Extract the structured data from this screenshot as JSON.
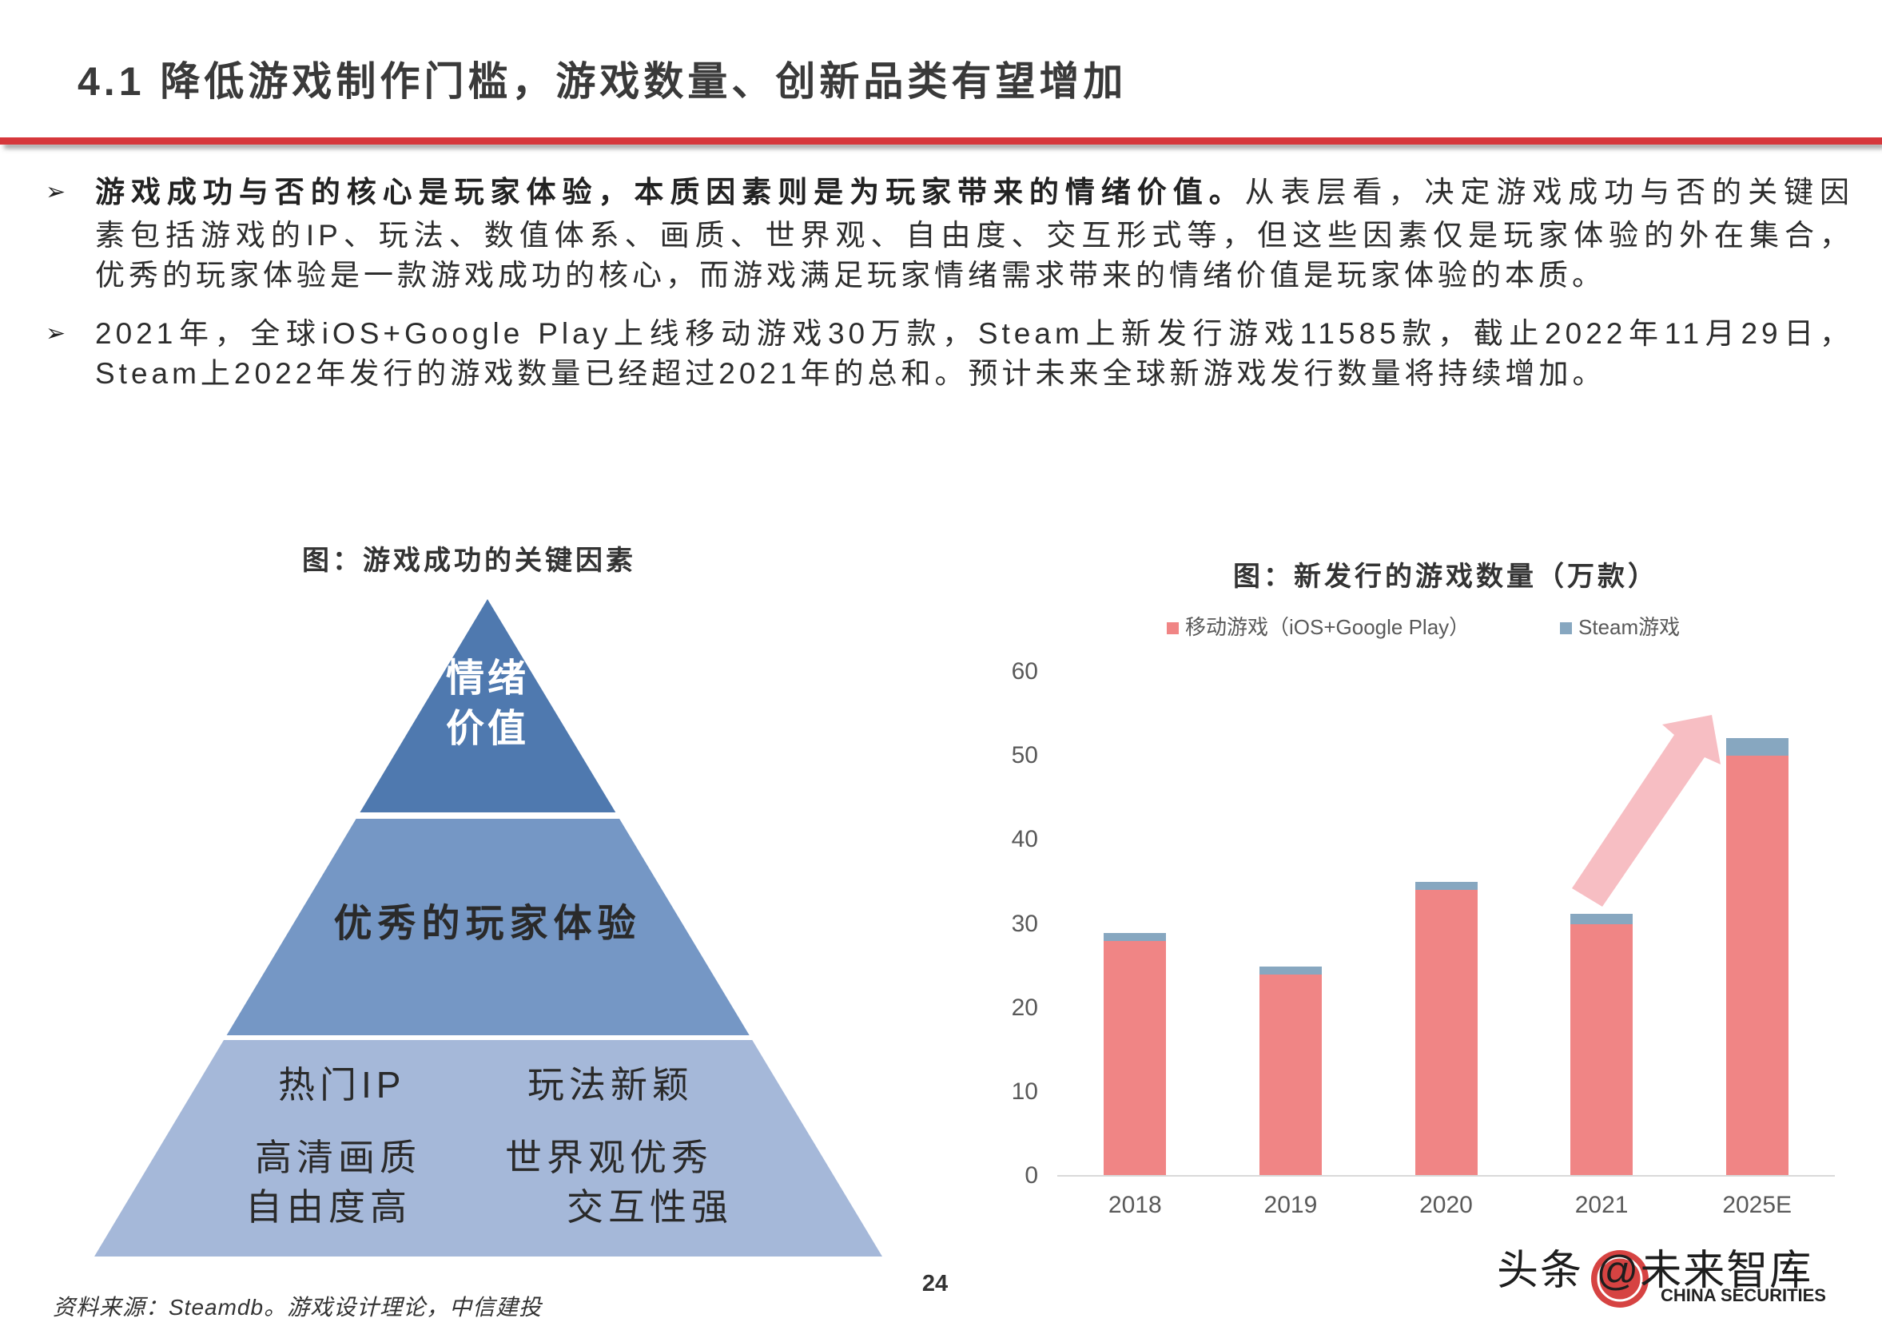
{
  "page": {
    "title": "4.1 降低游戏制作门槛，游戏数量、创新品类有望增加",
    "page_number": "24",
    "source": "资料来源：Steamdb。游戏设计理论，中信建投"
  },
  "bullet_icon": "➢",
  "bullets": [
    {
      "lines": [
        {
          "bold": "游戏成功与否的核心是玩家体验，本质因素则是为玩家带来的情绪价值。",
          "text": "从表层看，决定游戏成功与否的关键因"
        },
        {
          "text": "素包括游戏的IP、玩法、数值体系、画质、世界观、自由度、交互形式等，但这些因素仅是玩家体验的外在集合，"
        },
        {
          "text": "优秀的玩家体验是一款游戏成功的核心，而游戏满足玩家情绪需求带来的情绪价值是玩家体验的本质。"
        }
      ]
    },
    {
      "lines": [
        {
          "text": "2021年，全球iOS+Google Play上线移动游戏30万款，Steam上新发行游戏11585款，截止2022年11月29日，"
        },
        {
          "text": "Steam上2022年发行的游戏数量已经超过2021年的总和。预计未来全球新游戏发行数量将持续增加。"
        }
      ]
    }
  ],
  "pyramid": {
    "title": "图：游戏成功的关键因素",
    "tier1": {
      "lines": [
        "情绪",
        "价值"
      ]
    },
    "tier2": {
      "label": "优秀的玩家体验"
    },
    "tier3": {
      "items": [
        "热门IP",
        "玩法新颖",
        "高清画质",
        "世界观优秀",
        "自由度高",
        "交互性强"
      ]
    }
  },
  "colors": {
    "accent_red": "#D6373B",
    "tier1": "#4F79AF",
    "tier2": "#7597C5",
    "tier3": "#A5B8D9",
    "arrow": "#F7BEC3",
    "logo_red": "#D22F2E"
  },
  "chart_data": {
    "type": "bar",
    "stacked": true,
    "title": "图：新发行的游戏数量（万款）",
    "categories": [
      "2018",
      "2019",
      "2020",
      "2021",
      "2025E"
    ],
    "series": [
      {
        "name": "移动游戏（iOS+Google Play）",
        "color": "#F08585",
        "values": [
          28,
          24,
          34,
          30,
          50
        ]
      },
      {
        "name": "Steam游戏",
        "color": "#87A7C0",
        "values": [
          0.9,
          0.9,
          1.0,
          1.16,
          2.1
        ]
      }
    ],
    "xlabel": "",
    "ylabel": "",
    "ylim": [
      0,
      60
    ],
    "yticks": [
      0,
      10,
      20,
      30,
      40,
      50,
      60
    ],
    "grid": false,
    "legend_position": "top",
    "annotations": [
      {
        "type": "arrow",
        "from": "2021",
        "to": "2025E",
        "meaning": "growth trend"
      }
    ]
  },
  "watermark": {
    "text": "头条 @未来智库",
    "logo_text": "CHINA SECURITIES"
  }
}
